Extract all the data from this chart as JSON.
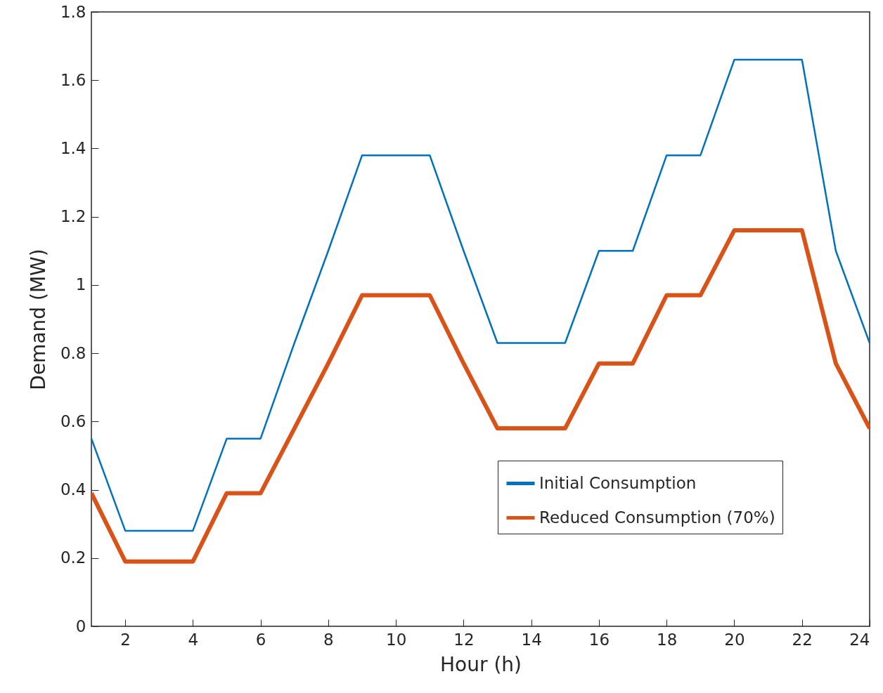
{
  "chart_data": {
    "type": "line",
    "xlabel": "Hour (h)",
    "ylabel": "Demand (MW)",
    "x": [
      1,
      2,
      3,
      4,
      5,
      6,
      7,
      8,
      9,
      10,
      11,
      12,
      13,
      14,
      15,
      16,
      17,
      18,
      19,
      20,
      21,
      22,
      23,
      24
    ],
    "xlim": [
      1,
      24
    ],
    "xticks": [
      2,
      4,
      6,
      8,
      10,
      12,
      14,
      16,
      18,
      20,
      22,
      24
    ],
    "ylim": [
      0,
      1.8
    ],
    "yticks": [
      0,
      0.2,
      0.4,
      0.6,
      0.8,
      1,
      1.2,
      1.4,
      1.6,
      1.8
    ],
    "grid": false,
    "legend": "bottom right",
    "marker": "none",
    "line_style": "solid",
    "series": [
      {
        "name": "Initial Consumption",
        "color": "#0072bd",
        "values": [
          0.55,
          0.28,
          0.28,
          0.28,
          0.55,
          0.55,
          0.83,
          1.1,
          1.38,
          1.38,
          1.38,
          1.1,
          0.83,
          0.83,
          0.83,
          1.1,
          1.1,
          1.38,
          1.38,
          1.66,
          1.66,
          1.66,
          1.1,
          0.83
        ]
      },
      {
        "name": "Reduced Consumption (70%)",
        "color": "#d95319",
        "values": [
          0.39,
          0.19,
          0.19,
          0.19,
          0.39,
          0.39,
          0.58,
          0.77,
          0.97,
          0.97,
          0.97,
          0.77,
          0.58,
          0.58,
          0.58,
          0.77,
          0.77,
          0.97,
          0.97,
          1.16,
          1.16,
          1.16,
          0.77,
          0.58
        ]
      }
    ]
  }
}
